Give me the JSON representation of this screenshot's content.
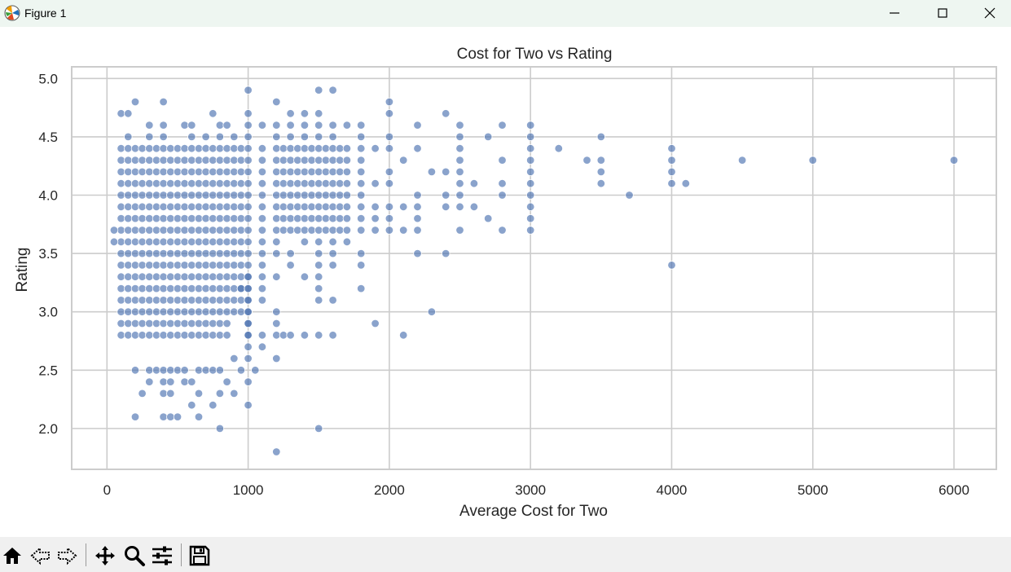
{
  "window": {
    "title": "Figure 1",
    "controls": [
      "minimize",
      "maximize",
      "close"
    ]
  },
  "toolbar": {
    "tools": [
      "home-icon",
      "back-icon",
      "forward-icon",
      "pan-icon",
      "zoom-icon",
      "configure-subplots-icon",
      "save-icon"
    ]
  },
  "chart_data": {
    "type": "scatter",
    "title": "Cost for Two vs Rating",
    "xlabel": "Average Cost for Two",
    "ylabel": "Rating",
    "xlim": [
      -250,
      6300
    ],
    "ylim": [
      1.65,
      5.1
    ],
    "xticks": [
      0,
      1000,
      2000,
      3000,
      4000,
      5000,
      6000
    ],
    "yticks": [
      2.0,
      2.5,
      3.0,
      3.5,
      4.0,
      4.5,
      5.0
    ],
    "ytick_labels": [
      "2.0",
      "2.5",
      "3.0",
      "3.5",
      "4.0",
      "4.5",
      "5.0"
    ],
    "grid": true,
    "marker_color": "#4c72b0",
    "background": "#ffffff",
    "grid_color": "#cccccc",
    "points": [
      [
        50,
        3.7
      ],
      [
        50,
        3.6
      ],
      [
        100,
        4.7
      ],
      [
        150,
        4.7
      ],
      [
        200,
        4.8
      ],
      [
        400,
        4.8
      ],
      [
        300,
        4.6
      ],
      [
        400,
        4.6
      ],
      [
        550,
        4.6
      ],
      [
        600,
        4.6
      ],
      [
        750,
        4.7
      ],
      [
        800,
        4.6
      ],
      [
        850,
        4.6
      ],
      [
        1000,
        4.9
      ],
      [
        1200,
        4.8
      ],
      [
        1500,
        4.9
      ],
      [
        1600,
        4.9
      ],
      [
        2000,
        4.8
      ],
      [
        2000,
        4.7
      ],
      [
        2400,
        4.7
      ],
      [
        1000,
        4.7
      ],
      [
        1300,
        4.7
      ],
      [
        1400,
        4.7
      ],
      [
        1500,
        4.7
      ],
      [
        1000,
        4.6
      ],
      [
        1100,
        4.6
      ],
      [
        1200,
        4.6
      ],
      [
        1300,
        4.6
      ],
      [
        1400,
        4.6
      ],
      [
        1500,
        4.6
      ],
      [
        1600,
        4.6
      ],
      [
        1700,
        4.6
      ],
      [
        1800,
        4.6
      ],
      [
        2200,
        4.6
      ],
      [
        2500,
        4.6
      ],
      [
        2800,
        4.6
      ],
      [
        3000,
        4.6
      ],
      [
        150,
        4.5
      ],
      [
        300,
        4.5
      ],
      [
        400,
        4.5
      ],
      [
        600,
        4.5
      ],
      [
        700,
        4.5
      ],
      [
        800,
        4.5
      ],
      [
        900,
        4.5
      ],
      [
        1000,
        4.5
      ],
      [
        1200,
        4.5
      ],
      [
        1300,
        4.5
      ],
      [
        1400,
        4.5
      ],
      [
        1500,
        4.5
      ],
      [
        1600,
        4.5
      ],
      [
        1800,
        4.5
      ],
      [
        2000,
        4.5
      ],
      [
        2500,
        4.5
      ],
      [
        2700,
        4.5
      ],
      [
        3000,
        4.5
      ],
      [
        3500,
        4.5
      ],
      [
        1900,
        4.4
      ],
      [
        2000,
        4.4
      ],
      [
        2200,
        4.4
      ],
      [
        2500,
        4.4
      ],
      [
        3000,
        4.4
      ],
      [
        3200,
        4.4
      ],
      [
        4000,
        4.4
      ],
      [
        2100,
        4.3
      ],
      [
        2500,
        4.3
      ],
      [
        2800,
        4.3
      ],
      [
        3000,
        4.3
      ],
      [
        3400,
        4.3
      ],
      [
        3500,
        4.3
      ],
      [
        4000,
        4.3
      ],
      [
        4500,
        4.3
      ],
      [
        5000,
        4.3
      ],
      [
        6000,
        4.3
      ],
      [
        2000,
        4.2
      ],
      [
        2300,
        4.2
      ],
      [
        2400,
        4.2
      ],
      [
        2500,
        4.2
      ],
      [
        3000,
        4.2
      ],
      [
        3500,
        4.2
      ],
      [
        4000,
        4.2
      ],
      [
        1900,
        4.1
      ],
      [
        2000,
        4.1
      ],
      [
        2500,
        4.1
      ],
      [
        2600,
        4.1
      ],
      [
        2800,
        4.1
      ],
      [
        3000,
        4.1
      ],
      [
        3500,
        4.1
      ],
      [
        4000,
        4.1
      ],
      [
        4100,
        4.1
      ],
      [
        2200,
        4.0
      ],
      [
        2400,
        4.0
      ],
      [
        2500,
        4.0
      ],
      [
        2800,
        4.0
      ],
      [
        3000,
        4.0
      ],
      [
        3700,
        4.0
      ],
      [
        1900,
        3.9
      ],
      [
        2000,
        3.9
      ],
      [
        2100,
        3.9
      ],
      [
        2200,
        3.9
      ],
      [
        2400,
        3.9
      ],
      [
        2500,
        3.9
      ],
      [
        2600,
        3.9
      ],
      [
        3000,
        3.9
      ],
      [
        1900,
        3.8
      ],
      [
        2000,
        3.8
      ],
      [
        2200,
        3.8
      ],
      [
        2700,
        3.8
      ],
      [
        3000,
        3.8
      ],
      [
        1900,
        3.7
      ],
      [
        2000,
        3.7
      ],
      [
        2100,
        3.7
      ],
      [
        2200,
        3.7
      ],
      [
        2500,
        3.7
      ],
      [
        2800,
        3.7
      ],
      [
        3000,
        3.7
      ],
      [
        1100,
        3.6
      ],
      [
        1200,
        3.6
      ],
      [
        1400,
        3.6
      ],
      [
        1500,
        3.6
      ],
      [
        1600,
        3.6
      ],
      [
        1700,
        3.6
      ],
      [
        1100,
        3.5
      ],
      [
        1200,
        3.5
      ],
      [
        1300,
        3.5
      ],
      [
        1500,
        3.5
      ],
      [
        1600,
        3.5
      ],
      [
        1800,
        3.5
      ],
      [
        2200,
        3.5
      ],
      [
        2400,
        3.5
      ],
      [
        1100,
        3.4
      ],
      [
        1300,
        3.4
      ],
      [
        1500,
        3.4
      ],
      [
        1600,
        3.4
      ],
      [
        1800,
        3.4
      ],
      [
        4000,
        3.4
      ],
      [
        1000,
        3.3
      ],
      [
        1100,
        3.3
      ],
      [
        1200,
        3.3
      ],
      [
        1400,
        3.3
      ],
      [
        1500,
        3.3
      ],
      [
        950,
        3.2
      ],
      [
        1000,
        3.2
      ],
      [
        1100,
        3.2
      ],
      [
        1500,
        3.2
      ],
      [
        1800,
        3.2
      ],
      [
        1000,
        3.1
      ],
      [
        1100,
        3.1
      ],
      [
        1500,
        3.1
      ],
      [
        1600,
        3.1
      ],
      [
        1000,
        3.0
      ],
      [
        1200,
        3.0
      ],
      [
        2300,
        3.0
      ],
      [
        1000,
        2.9
      ],
      [
        1200,
        2.9
      ],
      [
        1900,
        2.9
      ],
      [
        1000,
        2.8
      ],
      [
        1100,
        2.8
      ],
      [
        1200,
        2.8
      ],
      [
        1250,
        2.8
      ],
      [
        1300,
        2.8
      ],
      [
        1400,
        2.8
      ],
      [
        1500,
        2.8
      ],
      [
        1600,
        2.8
      ],
      [
        2100,
        2.8
      ],
      [
        1000,
        2.7
      ],
      [
        1100,
        2.7
      ],
      [
        900,
        2.6
      ],
      [
        1000,
        2.6
      ],
      [
        1200,
        2.6
      ],
      [
        950,
        2.5
      ],
      [
        1050,
        2.5
      ],
      [
        1000,
        2.4
      ],
      [
        1000,
        2.2
      ],
      [
        1500,
        2.0
      ],
      [
        1200,
        1.8
      ],
      [
        200,
        2.1
      ],
      [
        400,
        2.1
      ],
      [
        450,
        2.1
      ],
      [
        500,
        2.1
      ],
      [
        650,
        2.1
      ],
      [
        600,
        2.2
      ],
      [
        750,
        2.2
      ],
      [
        250,
        2.3
      ],
      [
        400,
        2.3
      ],
      [
        450,
        2.3
      ],
      [
        650,
        2.3
      ],
      [
        800,
        2.3
      ],
      [
        900,
        2.3
      ],
      [
        300,
        2.4
      ],
      [
        400,
        2.4
      ],
      [
        450,
        2.4
      ],
      [
        550,
        2.4
      ],
      [
        600,
        2.4
      ],
      [
        850,
        2.4
      ],
      [
        200,
        2.5
      ],
      [
        300,
        2.5
      ],
      [
        350,
        2.5
      ],
      [
        400,
        2.5
      ],
      [
        450,
        2.5
      ],
      [
        500,
        2.5
      ],
      [
        550,
        2.5
      ],
      [
        650,
        2.5
      ],
      [
        700,
        2.5
      ],
      [
        750,
        2.5
      ],
      [
        800,
        2.5
      ],
      [
        800,
        2.0
      ]
    ]
  }
}
